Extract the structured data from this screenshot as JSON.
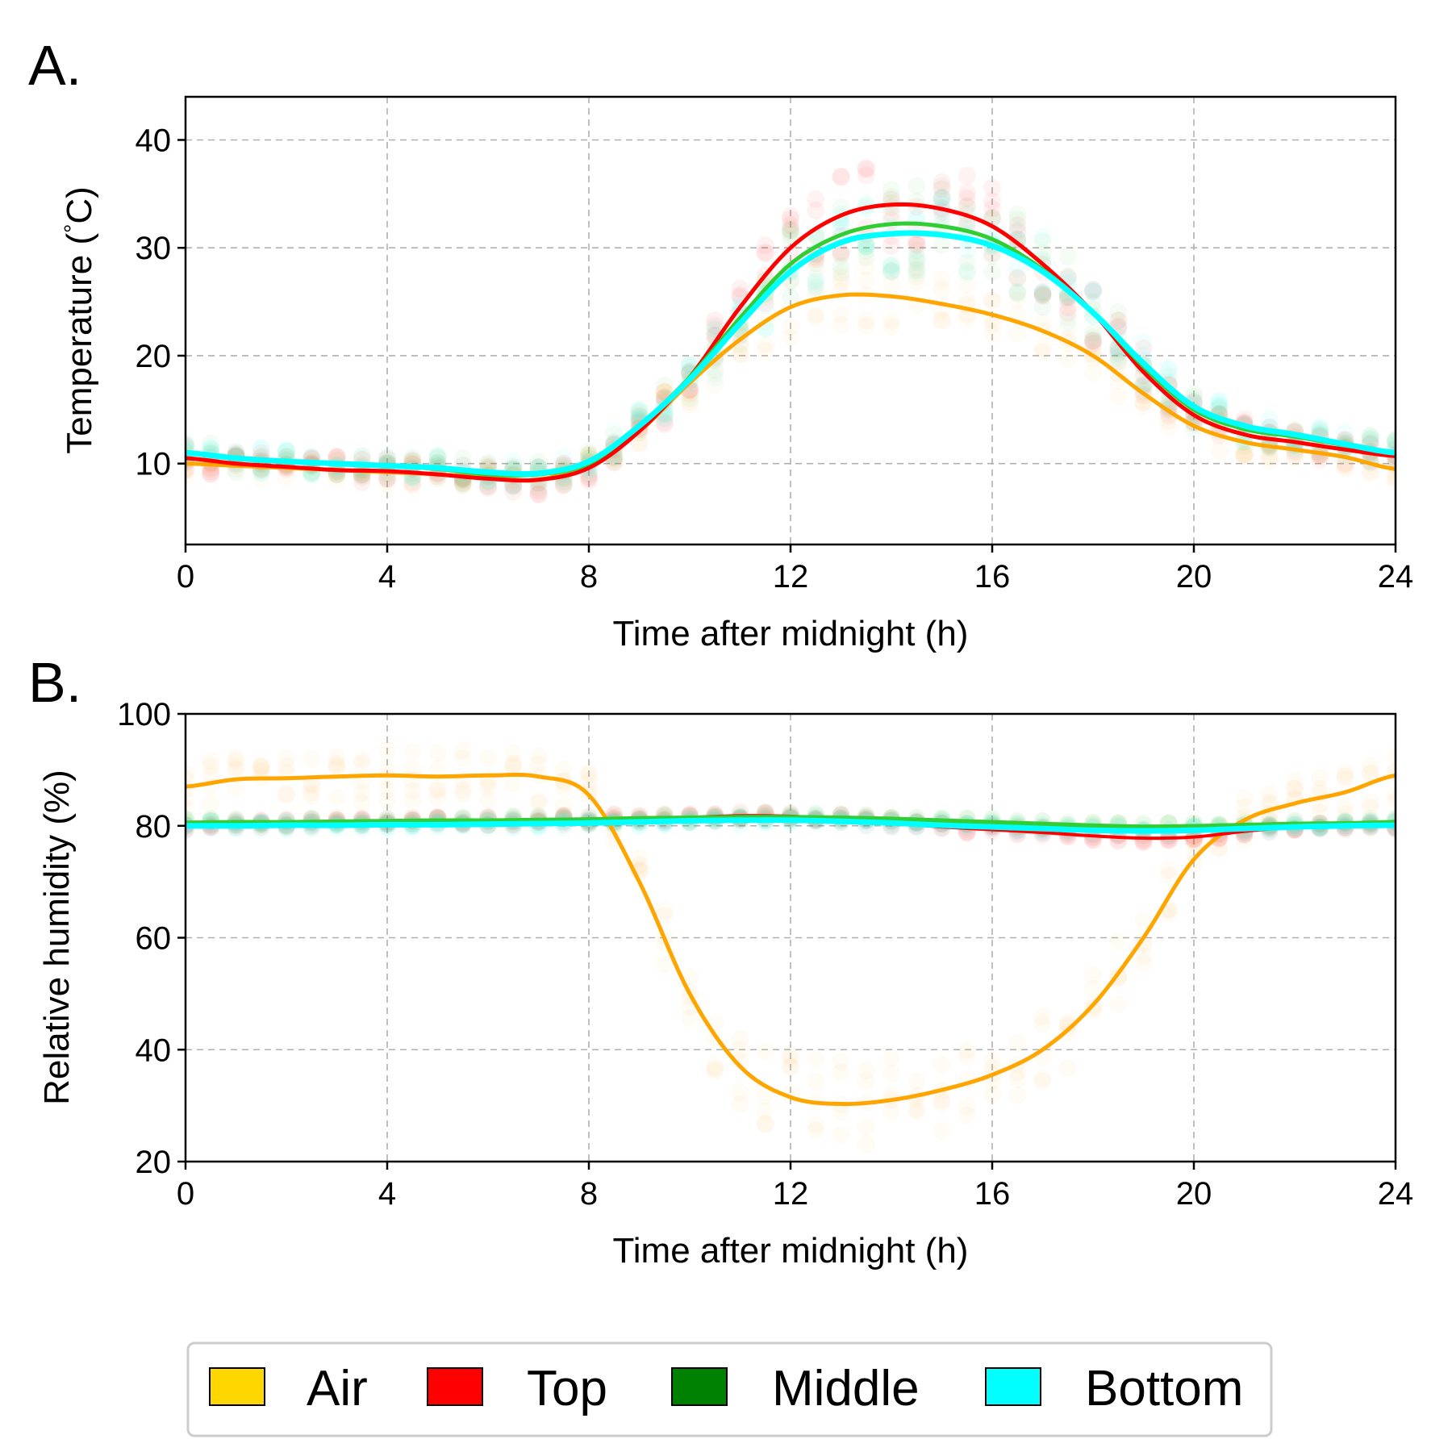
{
  "chart_data": [
    {
      "panel": "A.",
      "type": "line",
      "xlabel": "Time after midnight (h)",
      "ylabel": "Temperature ($^\\circ$C)",
      "ylabel_text": "Temperature (",
      "ylabel_degree": "°",
      "ylabel_unit": "C)",
      "xlim": [
        0,
        24
      ],
      "ylim": [
        2.5,
        44
      ],
      "xticks": [
        0,
        4,
        8,
        12,
        16,
        20,
        24
      ],
      "yticks": [
        10,
        20,
        30,
        40
      ],
      "grid": true,
      "x": [
        0,
        1,
        2,
        3,
        4,
        5,
        6,
        7,
        8,
        9,
        10,
        11,
        12,
        13,
        14,
        15,
        16,
        17,
        18,
        19,
        20,
        21,
        22,
        23,
        24
      ],
      "series": [
        {
          "name": "Air",
          "color": "#FFA500",
          "values": [
            10.0,
            9.8,
            9.6,
            9.4,
            9.2,
            9.0,
            8.7,
            8.5,
            10.0,
            13.0,
            17.5,
            21.5,
            24.5,
            25.6,
            25.5,
            24.8,
            23.8,
            22.3,
            20.0,
            16.5,
            13.5,
            12.0,
            11.3,
            10.6,
            9.5
          ]
        },
        {
          "name": "Top",
          "color": "#FF0000",
          "values": [
            10.5,
            10.0,
            9.7,
            9.4,
            9.3,
            9.0,
            8.6,
            8.5,
            9.6,
            13.0,
            18.0,
            24.5,
            30.0,
            33.0,
            34.0,
            33.6,
            32.0,
            28.5,
            24.0,
            18.5,
            14.5,
            12.7,
            12.0,
            11.3,
            10.7
          ]
        },
        {
          "name": "Middle",
          "color": "#32CD32",
          "values": [
            11.0,
            10.5,
            10.2,
            10.0,
            9.8,
            9.5,
            9.0,
            9.0,
            10.0,
            13.5,
            18.0,
            23.5,
            28.5,
            31.2,
            32.2,
            32.0,
            30.8,
            28.0,
            24.0,
            19.0,
            15.0,
            13.2,
            12.5,
            11.7,
            11.0
          ]
        },
        {
          "name": "Bottom",
          "color": "#00FFFF",
          "values": [
            11.0,
            10.5,
            10.2,
            10.0,
            9.8,
            9.6,
            9.2,
            9.1,
            10.2,
            13.5,
            17.8,
            23.0,
            27.8,
            30.5,
            31.3,
            31.2,
            30.2,
            27.8,
            24.0,
            19.3,
            15.3,
            13.5,
            12.7,
            11.8,
            11.0
          ]
        }
      ]
    },
    {
      "panel": "B.",
      "type": "line",
      "xlabel": "Time after midnight (h)",
      "ylabel": "Relative humidity (%)",
      "xlim": [
        0,
        24
      ],
      "ylim": [
        20,
        100
      ],
      "xticks": [
        0,
        4,
        8,
        12,
        16,
        20,
        24
      ],
      "yticks": [
        20,
        40,
        60,
        80,
        100
      ],
      "grid": true,
      "x": [
        0,
        1,
        2,
        3,
        4,
        5,
        6,
        7,
        8,
        9,
        10,
        11,
        12,
        13,
        14,
        15,
        16,
        17,
        18,
        19,
        20,
        21,
        22,
        23,
        24
      ],
      "series": [
        {
          "name": "Air",
          "color": "#FFA500",
          "values": [
            87.0,
            88.3,
            88.5,
            88.8,
            89.0,
            88.8,
            89.0,
            88.8,
            85.5,
            70.0,
            50.0,
            37.0,
            31.5,
            30.3,
            31.0,
            32.8,
            35.5,
            40.0,
            48.0,
            60.0,
            74.0,
            81.0,
            84.0,
            86.0,
            89.0
          ]
        },
        {
          "name": "Top",
          "color": "#FF0000",
          "values": [
            80.0,
            80.2,
            80.4,
            80.6,
            80.7,
            80.8,
            80.9,
            81.0,
            81.1,
            81.3,
            81.5,
            81.8,
            81.7,
            81.2,
            80.5,
            79.8,
            79.3,
            78.8,
            78.2,
            77.8,
            78.0,
            79.0,
            79.8,
            80.0,
            80.2
          ]
        },
        {
          "name": "Middle",
          "color": "#32CD32",
          "values": [
            80.5,
            80.6,
            80.6,
            80.7,
            80.8,
            80.9,
            80.9,
            81.0,
            81.1,
            81.3,
            81.4,
            81.5,
            81.5,
            81.4,
            81.2,
            80.9,
            80.6,
            80.3,
            80.0,
            79.8,
            79.9,
            80.1,
            80.3,
            80.4,
            80.6
          ]
        },
        {
          "name": "Bottom",
          "color": "#00FFFF",
          "values": [
            80.0,
            80.0,
            80.1,
            80.1,
            80.2,
            80.2,
            80.3,
            80.4,
            80.5,
            80.7,
            80.9,
            81.0,
            81.0,
            80.8,
            80.5,
            80.1,
            79.8,
            79.5,
            79.2,
            79.1,
            79.2,
            79.5,
            79.8,
            80.0,
            80.1
          ]
        }
      ]
    }
  ],
  "legend": {
    "placement": "bottom-center",
    "items": [
      {
        "label": "Air",
        "color": "#FFD700"
      },
      {
        "label": "Top",
        "color": "#FF0000"
      },
      {
        "label": "Middle",
        "color": "#008000"
      },
      {
        "label": "Bottom",
        "color": "#00FFFF"
      }
    ]
  }
}
